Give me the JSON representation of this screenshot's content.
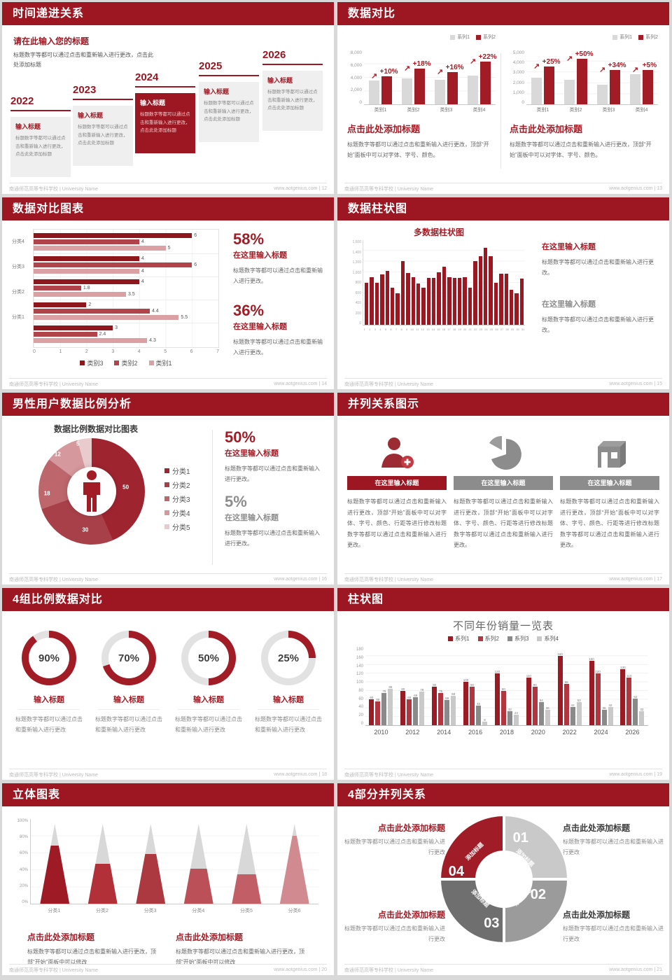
{
  "footer_left": "南通师范高等专科学校 | University Name",
  "colors": {
    "accent": "#9C1722",
    "bar_red": "#A21C26",
    "bar_gray": "#D9D9D9",
    "dark_gray": "#8A8A8A",
    "light_gray": "#C9C9C9"
  },
  "slides": {
    "s12": {
      "header": "时间递进关系",
      "footer_right": "www.aotgenius.com | 12",
      "intro_title": "请在此输入您的标题",
      "intro_body": "标题数字等都可以通过点击和重新输入进行更改，点击此处添加标题",
      "years": [
        "2022",
        "2023",
        "2024",
        "2025",
        "2026"
      ],
      "highlight_year": "2024",
      "box_title": "输入标题",
      "box_body": "标题数字等都可以通过点击和重新输入进行更改，点击此处添加标题"
    },
    "s13": {
      "header": "数据对比",
      "footer_right": "www.aotgenius.com | 13",
      "legend": [
        "系列1",
        "系列2"
      ],
      "block_title": "点击此处添加标题",
      "block_body": "标题数字等都可以通过点击和重新输入进行更改，顶部“开始”面板中可以对字体、字号、颜色。",
      "charts": [
        {
          "yticks": [
            "8,000",
            "6,000",
            "4,000",
            "2,000",
            "0"
          ],
          "ymax": 8000,
          "categories": [
            "类别1",
            "类别2",
            "类别3",
            "类别4"
          ],
          "series1": [
            3500,
            3800,
            3600,
            4300
          ],
          "series2": [
            4200,
            5300,
            4800,
            6300
          ],
          "labels": [
            "+10%",
            "+18%",
            "+16%",
            "+22%"
          ]
        },
        {
          "yticks": [
            "5,000",
            "4,000",
            "3,000",
            "2,000",
            "1,000",
            "0"
          ],
          "ymax": 5000,
          "categories": [
            "类别1",
            "类别2",
            "类别3",
            "类别4"
          ],
          "series1": [
            2500,
            2300,
            1800,
            2800
          ],
          "series2": [
            3500,
            4200,
            3200,
            3200
          ],
          "labels": [
            "+25%",
            "+50%",
            "+34%",
            "+5%"
          ]
        }
      ]
    },
    "s14": {
      "header": "数据对比图表",
      "footer_right": "www.aotgenius.com | 14",
      "groups": [
        {
          "label": "分类4",
          "values": [
            6,
            4,
            5
          ]
        },
        {
          "label": "分类3",
          "values": [
            4,
            6,
            4
          ]
        },
        {
          "label": "分类2",
          "values": [
            4,
            1.8,
            3.5
          ]
        },
        {
          "label": "分类1",
          "values": [
            2,
            4.4,
            5.5
          ]
        },
        {
          "label": "",
          "values": [
            3,
            2.4,
            4.3
          ]
        }
      ],
      "xticks": [
        "0",
        "1",
        "2",
        "3",
        "4",
        "5",
        "6",
        "7"
      ],
      "xmax": 7,
      "legend": [
        "类别3",
        "类别2",
        "类别1"
      ],
      "stats": [
        {
          "pct": "58%",
          "title": "在这里输入标题",
          "body": "标题数字等都可以通过点击和重新输入进行更改。"
        },
        {
          "pct": "36%",
          "title": "在这里输入标题",
          "body": "标题数字等都可以通过点击和重新输入进行更改。"
        }
      ]
    },
    "s15": {
      "header": "数据柱状图",
      "footer_right": "www.aotgenius.com | 15",
      "chart_title": "多数据柱状图",
      "yticks": [
        "1,600",
        "1,400",
        "1,200",
        "1,000",
        "800",
        "600",
        "400",
        "200",
        "0"
      ],
      "ymax": 1600,
      "values": [
        800,
        900,
        800,
        950,
        1020,
        700,
        600,
        1200,
        980,
        900,
        780,
        700,
        890,
        890,
        990,
        1100,
        900,
        890,
        880,
        900,
        700,
        1200,
        1300,
        1450,
        1300,
        800,
        960,
        960,
        660,
        600,
        870
      ],
      "xlabels": [
        "1",
        "2",
        "3",
        "4",
        "5",
        "6",
        "7",
        "8",
        "9",
        "10",
        "11",
        "12",
        "13",
        "14",
        "15",
        "16",
        "17",
        "18",
        "19",
        "20",
        "21",
        "22",
        "23",
        "24",
        "25",
        "26",
        "27",
        "28",
        "29",
        "30",
        "31"
      ],
      "stats": [
        {
          "title": "在这里输入标题",
          "body": "标题数字等都可以通过点击和重新输入进行更改。"
        },
        {
          "title": "在这里输入标题",
          "body": "标题数字等都可以通过点击和重新输入进行更改。"
        }
      ]
    },
    "s16": {
      "header": "男性用户数据比例分析",
      "footer_right": "www.aotgenius.com | 16",
      "chart_title": "数据比例数据对比图表",
      "values": [
        50,
        30,
        18,
        12,
        5
      ],
      "legend": [
        "分类1",
        "分类2",
        "分类3",
        "分类4",
        "分类5"
      ],
      "stats": [
        {
          "pct": "50%",
          "title": "在这里输入标题",
          "body": "标题数字等都可以通过点击和重新输入进行更改。"
        },
        {
          "pct": "5%",
          "title": "在这里输入标题",
          "body": "标题数字等都可以通过点击和重新输入进行更改。"
        }
      ]
    },
    "s17": {
      "header": "并列关系图示",
      "footer_right": "www.aotgenius.com | 17",
      "col_title": "在这里输入标题",
      "body": "标题数字等都可以通过点击和重新输入进行更改，顶部“开始”面板中可以对字体、字号、颜色、行距等进行修改标题数字等都可以通过点击和重新输入进行更改。",
      "icons": [
        "person-add-icon",
        "pie-chart-icon",
        "building-icon"
      ]
    },
    "s18": {
      "header": "4组比例数据对比",
      "footer_right": "www.aotgenius.com | 18",
      "rings": [
        90,
        70,
        50,
        25
      ],
      "title": "输入标题",
      "body": "标题数字等都可以通过点击和重新输入进行更改"
    },
    "s19": {
      "header": "柱状图",
      "footer_right": "www.aotgenius.com | 19",
      "chart_title": "不同年份销量一览表",
      "legend": [
        "系列1",
        "系列2",
        "系列3",
        "系列4"
      ],
      "categories": [
        "2010",
        "2012",
        "2014",
        "2016",
        "2018",
        "2020",
        "2022",
        "2024",
        "2026"
      ],
      "series": [
        [
          60,
          80,
          90,
          100,
          120,
          110,
          160,
          150,
          130
        ],
        [
          55,
          60,
          75,
          90,
          80,
          90,
          96,
          120,
          110
        ],
        [
          75,
          65,
          58,
          46,
          32,
          54,
          42,
          36,
          62
        ],
        [
          85,
          78,
          68,
          8,
          24,
          36,
          53,
          42,
          32
        ]
      ],
      "yticks": [
        "180",
        "160",
        "140",
        "120",
        "100",
        "80",
        "60",
        "40",
        "20",
        "0"
      ],
      "ymax": 180
    },
    "s20": {
      "header": "立体图表",
      "footer_right": "www.aotgenius.com | 20",
      "yticks": [
        "100%",
        "80%",
        "60%",
        "40%",
        "20%",
        "0%"
      ],
      "categories": [
        "分类1",
        "分类2",
        "分类3",
        "分类4",
        "分类5",
        "分类6"
      ],
      "values": [
        73,
        50,
        62,
        44,
        37,
        85
      ],
      "block_title": "点击此处添加标题",
      "block_body": "标题数字等都可以通过点击和重新输入进行更改，顶部“开始”面板中可以修改"
    },
    "s21": {
      "header": "4部分并列关系",
      "footer_right": "www.aotgenius.com | 21",
      "segments": [
        {
          "num": "01",
          "label": "添加标题"
        },
        {
          "num": "02",
          "label": "添加标题"
        },
        {
          "num": "03",
          "label": "添加标题"
        },
        {
          "num": "04",
          "label": "添加标题"
        }
      ],
      "block_title": "点击此处添加标题",
      "block_body": "标题数字等都可以通过点击和重新输入进行更改"
    }
  },
  "chart_data": [
    {
      "id": "compare-left",
      "type": "bar",
      "categories": [
        "类别1",
        "类别2",
        "类别3",
        "类别4"
      ],
      "series": [
        {
          "name": "系列1",
          "values": [
            3500,
            3800,
            3600,
            4300
          ]
        },
        {
          "name": "系列2",
          "values": [
            4200,
            5300,
            4800,
            6300
          ]
        }
      ],
      "annotations": [
        "+10%",
        "+18%",
        "+16%",
        "+22%"
      ],
      "ylim": [
        0,
        8000
      ],
      "legend_position": "top-right"
    },
    {
      "id": "compare-right",
      "type": "bar",
      "categories": [
        "类别1",
        "类别2",
        "类别3",
        "类别4"
      ],
      "series": [
        {
          "name": "系列1",
          "values": [
            2500,
            2300,
            1800,
            2800
          ]
        },
        {
          "name": "系列2",
          "values": [
            3500,
            4200,
            3200,
            3200
          ]
        }
      ],
      "annotations": [
        "+25%",
        "+50%",
        "+34%",
        "+5%"
      ],
      "ylim": [
        0,
        5000
      ],
      "legend_position": "top-right"
    },
    {
      "id": "horizontal-compare",
      "type": "bar",
      "orientation": "horizontal",
      "categories": [
        "分类4",
        "分类3",
        "分类2",
        "分类1",
        ""
      ],
      "series": [
        {
          "name": "类别3",
          "values": [
            6,
            4,
            4,
            2,
            3
          ]
        },
        {
          "name": "类别2",
          "values": [
            4,
            6,
            1.8,
            4.4,
            2.4
          ]
        },
        {
          "name": "类别1",
          "values": [
            5,
            4,
            3.5,
            5.5,
            4.3
          ]
        }
      ],
      "xlim": [
        0,
        7
      ],
      "legend_position": "bottom"
    },
    {
      "id": "multi-column",
      "type": "bar",
      "title": "多数据柱状图",
      "x": [
        1,
        2,
        3,
        4,
        5,
        6,
        7,
        8,
        9,
        10,
        11,
        12,
        13,
        14,
        15,
        16,
        17,
        18,
        19,
        20,
        21,
        22,
        23,
        24,
        25,
        26,
        27,
        28,
        29,
        30,
        31
      ],
      "values": [
        800,
        900,
        800,
        950,
        1020,
        700,
        600,
        1200,
        980,
        900,
        780,
        700,
        890,
        890,
        990,
        1100,
        900,
        890,
        880,
        900,
        700,
        1200,
        1300,
        1450,
        1300,
        800,
        960,
        960,
        660,
        600,
        870
      ],
      "ylim": [
        0,
        1600
      ]
    },
    {
      "id": "male-user-donut",
      "type": "pie",
      "title": "数据比例数据对比图表",
      "labels": [
        "分类1",
        "分类2",
        "分类3",
        "分类4",
        "分类5"
      ],
      "values": [
        50,
        30,
        18,
        12,
        5
      ]
    },
    {
      "id": "progress-rings",
      "type": "pie",
      "labels": [
        "输入标题",
        "输入标题",
        "输入标题",
        "输入标题"
      ],
      "values": [
        90,
        70,
        50,
        25
      ],
      "unit": "%"
    },
    {
      "id": "yearly-sales",
      "type": "bar",
      "title": "不同年份销量一览表",
      "categories": [
        "2010",
        "2012",
        "2014",
        "2016",
        "2018",
        "2020",
        "2022",
        "2024",
        "2026"
      ],
      "series": [
        {
          "name": "系列1",
          "values": [
            60,
            80,
            90,
            100,
            120,
            110,
            160,
            150,
            130
          ]
        },
        {
          "name": "系列2",
          "values": [
            55,
            60,
            75,
            90,
            80,
            90,
            96,
            120,
            110
          ]
        },
        {
          "name": "系列3",
          "values": [
            75,
            65,
            58,
            46,
            32,
            54,
            42,
            36,
            62
          ]
        },
        {
          "name": "系列4",
          "values": [
            85,
            78,
            68,
            8,
            24,
            36,
            53,
            42,
            32
          ]
        }
      ],
      "ylim": [
        0,
        180
      ],
      "legend_position": "top"
    },
    {
      "id": "cone-chart",
      "type": "bar",
      "categories": [
        "分类1",
        "分类2",
        "分类3",
        "分类4",
        "分类5",
        "分类6"
      ],
      "values": [
        73,
        50,
        62,
        44,
        37,
        85
      ],
      "ylim": [
        0,
        100
      ],
      "unit": "%"
    },
    {
      "id": "cycle-ring",
      "type": "pie",
      "labels": [
        "01",
        "02",
        "03",
        "04"
      ],
      "values": [
        25,
        25,
        25,
        25
      ]
    }
  ]
}
